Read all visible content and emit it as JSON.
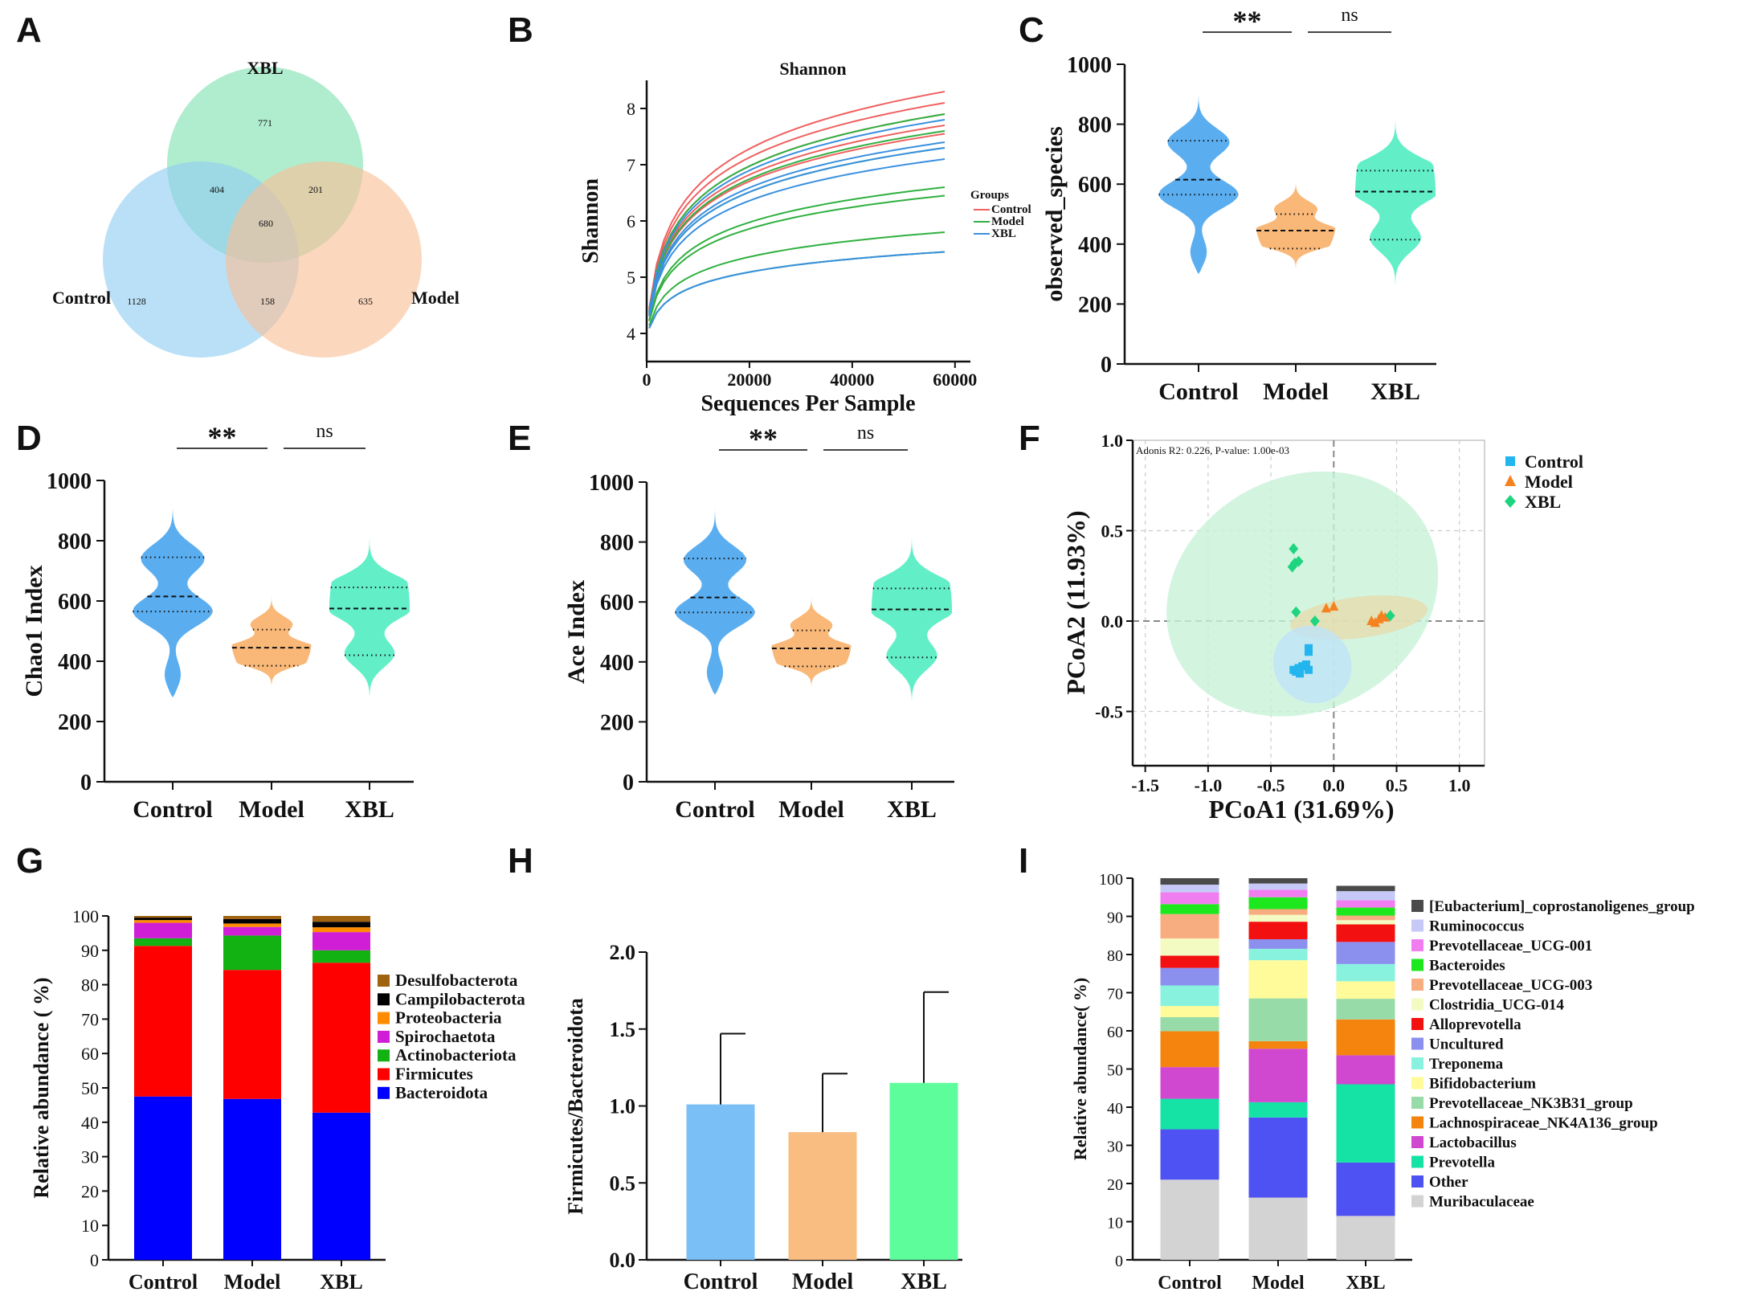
{
  "panels": [
    {
      "id": "A",
      "label": "A"
    },
    {
      "id": "B",
      "label": "B"
    },
    {
      "id": "C",
      "label": "C"
    },
    {
      "id": "D",
      "label": "D"
    },
    {
      "id": "E",
      "label": "E"
    },
    {
      "id": "F",
      "label": "F"
    },
    {
      "id": "G",
      "label": "G"
    },
    {
      "id": "H",
      "label": "H"
    },
    {
      "id": "I",
      "label": "I"
    }
  ],
  "colors": {
    "control": "#5aaef0",
    "model": "#f9b878",
    "xbl": "#62efc8"
  },
  "chart_data": [
    {
      "panel": "A",
      "type": "venn",
      "sets": [
        {
          "name": "XBL",
          "color": "#7fe0b0"
        },
        {
          "name": "Control",
          "color": "#8fcdf2"
        },
        {
          "name": "Model",
          "color": "#f8bf96"
        }
      ],
      "regions": {
        "xbl_only": "771",
        "control_only": "1128",
        "model_only": "635",
        "xbl_control": "404",
        "xbl_model": "201",
        "control_model": "158",
        "all": "680"
      }
    },
    {
      "panel": "B",
      "type": "line",
      "title": "Shannon",
      "xlabel": "Sequences Per Sample",
      "ylabel": "Shannon",
      "xlim": [
        0,
        63000
      ],
      "ylim": [
        3.5,
        8.5
      ],
      "xticks": [
        "0",
        "20000",
        "40000",
        "60000"
      ],
      "yticks": [
        "4",
        "5",
        "6",
        "7",
        "8"
      ],
      "legend_title": "Groups",
      "legend": [
        "Control",
        "Model",
        "XBL"
      ],
      "series": [
        {
          "group": "Control",
          "color": "#f06060",
          "plateau": [
            8.3,
            8.1,
            7.9,
            7.7,
            7.55
          ]
        },
        {
          "group": "Model",
          "color": "#30b040",
          "plateau": [
            7.9,
            7.6,
            7.3,
            6.6,
            6.45,
            5.8,
            5.45
          ]
        },
        {
          "group": "XBL",
          "color": "#3a90e0",
          "plateau": [
            7.8,
            7.4,
            7.3,
            7.1,
            5.45
          ]
        }
      ]
    },
    {
      "panel": "C",
      "type": "violin",
      "ylabel": "observed_species",
      "ylim": [
        0,
        1000
      ],
      "yticks": [
        "0",
        "200",
        "400",
        "600",
        "800",
        "1000"
      ],
      "categories": [
        "Control",
        "Model",
        "XBL"
      ],
      "groups": [
        {
          "name": "Control",
          "min": 300,
          "max": 900,
          "q1": 565,
          "median": 615,
          "q3": 745
        },
        {
          "name": "Model",
          "min": 310,
          "max": 640,
          "q1": 385,
          "median": 445,
          "q3": 500
        },
        {
          "name": "XBL",
          "min": 260,
          "max": 880,
          "q1": 415,
          "median": 575,
          "q3": 645
        }
      ],
      "significance": [
        {
          "label": "**"
        },
        {
          "label": "ns"
        }
      ]
    },
    {
      "panel": "D",
      "type": "violin",
      "ylabel": "Chao1 Index",
      "ylim": [
        0,
        1000
      ],
      "yticks": [
        "0",
        "200",
        "400",
        "600",
        "800",
        "1000"
      ],
      "categories": [
        "Control",
        "Model",
        "XBL"
      ],
      "groups": [
        {
          "name": "Control",
          "min": 280,
          "max": 920,
          "q1": 565,
          "median": 615,
          "q3": 745
        },
        {
          "name": "Model",
          "min": 305,
          "max": 640,
          "q1": 385,
          "median": 445,
          "q3": 505
        },
        {
          "name": "XBL",
          "min": 280,
          "max": 870,
          "q1": 420,
          "median": 575,
          "q3": 645
        }
      ],
      "significance": [
        {
          "label": "**"
        },
        {
          "label": "ns"
        }
      ]
    },
    {
      "panel": "E",
      "type": "violin",
      "ylabel": "Ace Index",
      "ylim": [
        0,
        1000
      ],
      "yticks": [
        "0",
        "200",
        "400",
        "600",
        "800",
        "1000"
      ],
      "categories": [
        "Control",
        "Model",
        "XBL"
      ],
      "groups": [
        {
          "name": "Control",
          "min": 290,
          "max": 910,
          "q1": 565,
          "median": 615,
          "q3": 745
        },
        {
          "name": "Model",
          "min": 305,
          "max": 640,
          "q1": 385,
          "median": 445,
          "q3": 505
        },
        {
          "name": "XBL",
          "min": 265,
          "max": 880,
          "q1": 415,
          "median": 575,
          "q3": 645
        }
      ],
      "significance": [
        {
          "label": "**"
        },
        {
          "label": "ns"
        }
      ]
    },
    {
      "panel": "F",
      "type": "scatter",
      "xlabel": "PCoA1 (31.69%)",
      "ylabel": "PCoA2 (11.93%)",
      "annotation": "Adonis R2: 0.226, P-value: 1.00e-03",
      "xlim": [
        -1.6,
        1.2
      ],
      "ylim": [
        -0.8,
        1.0
      ],
      "xticks": [
        "-1.5",
        "-1.0",
        "-0.5",
        "0.0",
        "0.5",
        "1.0"
      ],
      "yticks": [
        "-0.5",
        "0.0",
        "0.5",
        "1.0"
      ],
      "legend": [
        "Control",
        "Model",
        "XBL"
      ],
      "series": [
        {
          "name": "Control",
          "color": "#22b5ee",
          "marker": "square",
          "points": [
            [
              -0.2,
              -0.15
            ],
            [
              -0.2,
              -0.17
            ],
            [
              -0.22,
              -0.24
            ],
            [
              -0.25,
              -0.25
            ],
            [
              -0.28,
              -0.26
            ],
            [
              -0.27,
              -0.29
            ],
            [
              -0.3,
              -0.28
            ],
            [
              -0.32,
              -0.27
            ],
            [
              -0.2,
              -0.27
            ]
          ],
          "ellipse": {
            "cx": -0.17,
            "cy": -0.24,
            "rx": 0.32,
            "ry": 0.11,
            "angle": 40
          }
        },
        {
          "name": "Model",
          "color": "#f58220",
          "marker": "triangle",
          "points": [
            [
              -0.06,
              0.07
            ],
            [
              0.0,
              0.08
            ],
            [
              0.3,
              0.0
            ],
            [
              0.33,
              -0.01
            ],
            [
              0.36,
              0.01
            ],
            [
              0.38,
              0.03
            ],
            [
              0.41,
              0.02
            ]
          ],
          "ellipse": {
            "cx": 0.2,
            "cy": 0.02,
            "rx": 0.55,
            "ry": 0.06,
            "angle": -7
          }
        },
        {
          "name": "XBL",
          "color": "#1fd47f",
          "marker": "diamond",
          "points": [
            [
              -0.33,
              0.3
            ],
            [
              -0.31,
              0.32
            ],
            [
              -0.28,
              0.33
            ],
            [
              -0.32,
              0.4
            ],
            [
              -0.3,
              0.05
            ],
            [
              -0.15,
              0.0
            ],
            [
              0.45,
              0.03
            ]
          ],
          "ellipse": {
            "cx": -0.25,
            "cy": 0.15,
            "rx": 1.12,
            "ry": 0.34,
            "angle": -28
          }
        }
      ]
    },
    {
      "panel": "G",
      "type": "bar",
      "stacked": true,
      "ylabel": "Relative abundance ( %)",
      "ylim": [
        0,
        100
      ],
      "yticks": [
        "0",
        "10",
        "20",
        "30",
        "40",
        "50",
        "60",
        "70",
        "80",
        "90",
        "100"
      ],
      "categories": [
        "Control",
        "Model",
        "XBL"
      ],
      "legend": [
        "Desulfobacterota",
        "Campilobacterota",
        "Proteobacteria",
        "Spirochaetota",
        "Actinobacteriota",
        "Firmicutes",
        "Bacteroidota"
      ],
      "series": [
        {
          "name": "Bacteroidota",
          "color": "#0000ff",
          "values": [
            47.5,
            46.8,
            42.8
          ]
        },
        {
          "name": "Firmicutes",
          "color": "#ff0000",
          "values": [
            43.8,
            37.5,
            43.6
          ]
        },
        {
          "name": "Actinobacteriota",
          "color": "#11b211",
          "values": [
            2.2,
            10.0,
            3.6
          ]
        },
        {
          "name": "Spirochaetota",
          "color": "#d01ed6",
          "values": [
            4.5,
            2.5,
            5.3
          ]
        },
        {
          "name": "Proteobacteria",
          "color": "#ff8c00",
          "values": [
            0.8,
            1.0,
            1.4
          ]
        },
        {
          "name": "Campilobacterota",
          "color": "#000000",
          "values": [
            0.7,
            1.3,
            1.6
          ]
        },
        {
          "name": "Desulfobacterota",
          "color": "#a0620f",
          "values": [
            0.5,
            0.9,
            1.7
          ]
        }
      ]
    },
    {
      "panel": "H",
      "type": "bar",
      "ylabel": "Firmicutes/Bacteroidota",
      "ylim": [
        0,
        2.0
      ],
      "yticks": [
        "0.0",
        "0.5",
        "1.0",
        "1.5",
        "2.0"
      ],
      "categories": [
        "Control",
        "Model",
        "XBL"
      ],
      "values": [
        1.01,
        0.83,
        1.15
      ],
      "errors": [
        0.46,
        0.38,
        0.59
      ],
      "colors": [
        "#7bbff7",
        "#f9bd82",
        "#5efd9b"
      ]
    },
    {
      "panel": "I",
      "type": "bar",
      "stacked": true,
      "ylabel": "Relative abundance( %)",
      "ylim": [
        0,
        100
      ],
      "yticks": [
        "0",
        "10",
        "20",
        "30",
        "40",
        "50",
        "60",
        "70",
        "80",
        "90",
        "100"
      ],
      "categories": [
        "Control",
        "Model",
        "XBL"
      ],
      "legend": [
        "[Eubacterium]_coprostanoligenes_group",
        "Ruminococcus",
        "Prevotellaceae_UCG-001",
        "Bacteroides",
        "Prevotellaceae_UCG-003",
        "Clostridia_UCG-014",
        "Alloprevotella",
        "Uncultured",
        "Treponema",
        "Bifidobacterium",
        "Prevotellaceae_NK3B31_group",
        "Lachnospiraceae_NK4A136_group",
        "Lactobacillus",
        "Prevotella",
        "Other",
        "Muribaculaceae"
      ],
      "series": [
        {
          "name": "Muribaculaceae",
          "color": "#d3d3d3",
          "values": [
            21,
            16.3,
            11.5
          ]
        },
        {
          "name": "Other",
          "color": "#4f52f2",
          "values": [
            13.2,
            21,
            14
          ]
        },
        {
          "name": "Prevotella",
          "color": "#15e3a6",
          "values": [
            8,
            4,
            20.5
          ]
        },
        {
          "name": "Lactobacillus",
          "color": "#cf48cf",
          "values": [
            8.3,
            14,
            7.6
          ]
        },
        {
          "name": "Lachnospiraceae_NK4A136_group",
          "color": "#f5840f",
          "values": [
            9.4,
            2,
            9.4
          ]
        },
        {
          "name": "Prevotellaceae_NK3B31_group",
          "color": "#97dba8",
          "values": [
            3.7,
            11.2,
            5.4
          ]
        },
        {
          "name": "Bifidobacterium",
          "color": "#fffa9a",
          "values": [
            2.9,
            10,
            4.6
          ]
        },
        {
          "name": "Treponema",
          "color": "#88f2df",
          "values": [
            5.4,
            3,
            4.5
          ]
        },
        {
          "name": "Uncultured",
          "color": "#8b8fee",
          "values": [
            4.6,
            2.5,
            5.8
          ]
        },
        {
          "name": "Alloprevotella",
          "color": "#f21010",
          "values": [
            3.2,
            4.6,
            4.6
          ]
        },
        {
          "name": "Clostridia_UCG-014",
          "color": "#f4fbc2",
          "values": [
            4.5,
            1.8,
            1.1
          ]
        },
        {
          "name": "Prevotellaceae_UCG-003",
          "color": "#f8ad80",
          "values": [
            6.4,
            1.5,
            1.2
          ]
        },
        {
          "name": "Bacteroides",
          "color": "#1de81d",
          "values": [
            2.6,
            3.1,
            2.1
          ]
        },
        {
          "name": "Prevotellaceae_UCG-001",
          "color": "#f07ef0",
          "values": [
            3.1,
            2.0,
            1.9
          ]
        },
        {
          "name": "Ruminococcus",
          "color": "#c6c9f7",
          "values": [
            2.0,
            1.6,
            2.4
          ]
        },
        {
          "name": "[Eubacterium]_coprostanoligenes_group",
          "color": "#4a4a4a",
          "values": [
            1.7,
            1.4,
            1.4
          ]
        }
      ]
    }
  ]
}
